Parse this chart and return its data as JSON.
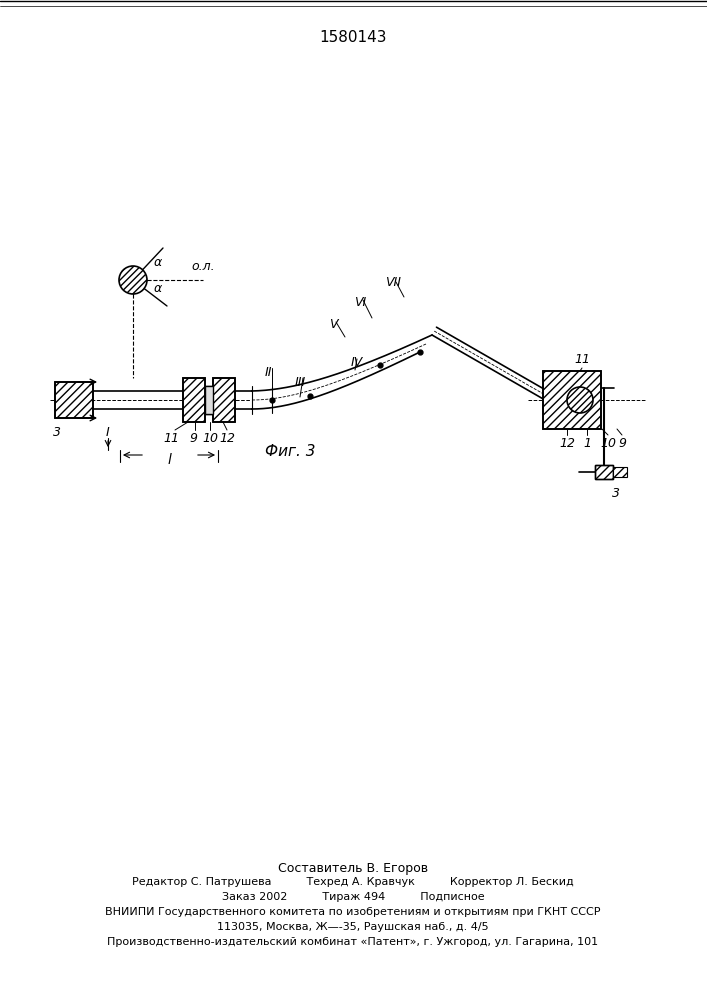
{
  "title": "1580143",
  "fig_label": "Фиг. 3",
  "bg_color": "#ffffff",
  "line_color": "#000000",
  "footer_lines": [
    "Составитель В. Егоров",
    "Редактор С. Патрушева          Техред А. Кравчук          Корректор Л. Бескид",
    "Заказ 2002          Тираж 494          Подписное",
    "ВНИИПИ Государственного комитета по изобретениям и открытиям при ГКНТ СССР",
    "113035, Москва, Ж—-35, Раушская наб., д. 4/5",
    "Производственно-издательский комбинат «Патент», г. Ужгород, ул. Гагарина, 101"
  ]
}
